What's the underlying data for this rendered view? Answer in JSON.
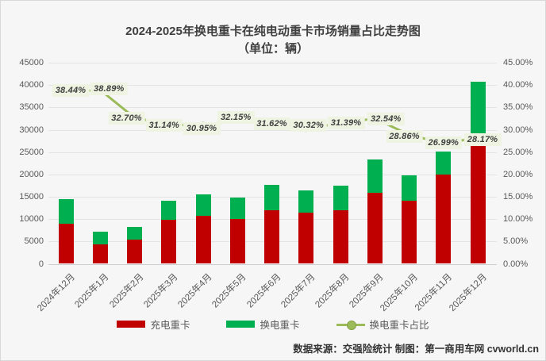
{
  "title": {
    "line1": "2024-2025年换电重卡在纯电动重卡市场销量占比走势图",
    "line2": "（单位：辆）"
  },
  "chart_data": {
    "type": "bar",
    "subtype": "stacked-bars-with-percentage-line",
    "categories": [
      "2024年12月",
      "2025年1月",
      "2025年2月",
      "2025年3月",
      "2025年4月",
      "2025年5月",
      "2025年6月",
      "2025年7月",
      "2025年8月",
      "2025年9月",
      "2025年10月",
      "2025年11月",
      "2025年12月"
    ],
    "series": [
      {
        "name": "充电重卡",
        "type": "bar",
        "color": "#c00000",
        "values": [
          8900,
          4400,
          5500,
          9800,
          10800,
          10100,
          12000,
          11400,
          12000,
          15800,
          14100,
          20000,
          29200
        ]
      },
      {
        "name": "换电重卡",
        "type": "bar",
        "color": "#00b050",
        "values": [
          5600,
          2800,
          2700,
          4400,
          4800,
          4800,
          5600,
          5000,
          5500,
          7600,
          5700,
          5200,
          11500
        ]
      },
      {
        "name": "换电重卡占比",
        "type": "line",
        "axis": "right",
        "color": "#9bbb59",
        "values": [
          38.44,
          38.89,
          32.7,
          31.14,
          30.95,
          32.15,
          31.62,
          30.32,
          31.39,
          32.54,
          28.86,
          26.99,
          28.17
        ],
        "labels": [
          "38.44%",
          "38.89%",
          "32.70%",
          "31.14%",
          "30.95%",
          "32.15%",
          "31.62%",
          "30.32%",
          "31.39%",
          "32.54%",
          "28.86%",
          "26.99%",
          "28.17%"
        ]
      }
    ],
    "left_axis": {
      "min": 0,
      "max": 45000,
      "step": 5000,
      "tick_labels": [
        "45000",
        "40000",
        "35000",
        "30000",
        "25000",
        "20000",
        "15000",
        "10000",
        "5000",
        "0"
      ]
    },
    "right_axis": {
      "min": 0,
      "max": 45,
      "step": 5,
      "tick_labels": [
        "45.00%",
        "40.00%",
        "35.00%",
        "30.00%",
        "25.00%",
        "20.00%",
        "15.00%",
        "10.00%",
        "5.00%",
        "0.00%"
      ]
    },
    "grid": true,
    "legend_position": "bottom"
  },
  "footer": {
    "text": "数据来源：交强险统计 制图：第一商用车网 cvworld.cn"
  },
  "colors": {
    "charging_bar": "#c00000",
    "swap_bar": "#00b050",
    "ratio_line": "#9bbb59",
    "label_bg": "#eef3e2",
    "grid": "#e4e4e4",
    "axis_text": "#595959",
    "background": "#f6f6f6"
  }
}
